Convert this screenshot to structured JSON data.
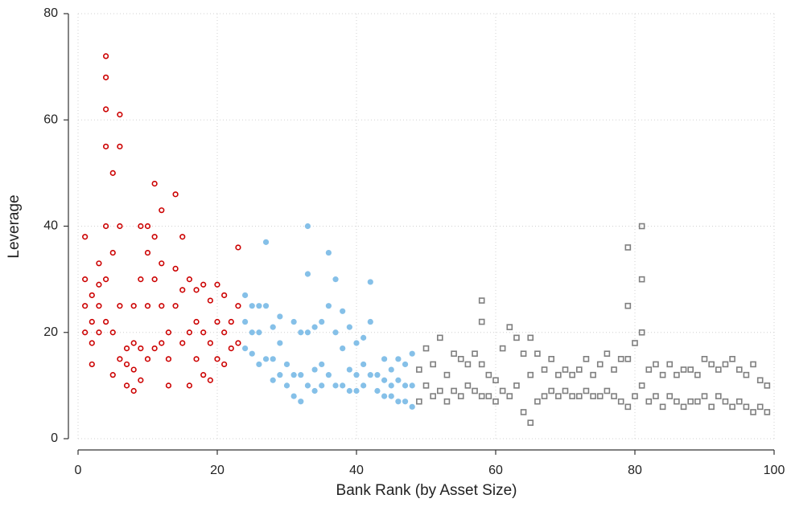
{
  "chart_data": {
    "type": "scatter",
    "x_label": "Bank Rank (by Asset Size)",
    "y_label": "Leverage",
    "xlim": [
      0,
      100
    ],
    "ylim": [
      0,
      80
    ],
    "xticks": [
      0,
      20,
      40,
      60,
      80,
      100
    ],
    "yticks": [
      0,
      20,
      40,
      60,
      80
    ],
    "grid": true,
    "series": [
      {
        "color": "#cc0000",
        "marker": "circle-open",
        "x": [
          1,
          1,
          1,
          1,
          2,
          2,
          2,
          2,
          3,
          3,
          3,
          3,
          4,
          4,
          4,
          4,
          4,
          4,
          4,
          5,
          5,
          5,
          5,
          6,
          6,
          6,
          6,
          6,
          7,
          7,
          7,
          8,
          8,
          8,
          8,
          9,
          9,
          9,
          9,
          10,
          10,
          10,
          10,
          11,
          11,
          11,
          11,
          12,
          12,
          12,
          12,
          13,
          13,
          13,
          14,
          14,
          14,
          15,
          15,
          15,
          16,
          16,
          16,
          17,
          17,
          17,
          18,
          18,
          18,
          19,
          19,
          19,
          20,
          20,
          20,
          21,
          21,
          21,
          22,
          22,
          23,
          23,
          23
        ],
        "values": [
          20,
          25,
          30,
          38,
          14,
          18,
          22,
          27,
          20,
          25,
          29,
          33,
          22,
          30,
          40,
          55,
          62,
          68,
          72,
          12,
          20,
          35,
          50,
          15,
          25,
          40,
          55,
          61,
          10,
          14,
          17,
          9,
          13,
          18,
          25,
          11,
          17,
          30,
          40,
          15,
          25,
          35,
          40,
          17,
          30,
          38,
          48,
          18,
          25,
          33,
          43,
          10,
          15,
          20,
          25,
          32,
          46,
          18,
          28,
          38,
          10,
          20,
          30,
          15,
          22,
          28,
          12,
          20,
          29,
          11,
          18,
          26,
          15,
          22,
          29,
          14,
          20,
          27,
          17,
          22,
          18,
          25,
          36
        ]
      },
      {
        "color": "#85c0e8",
        "marker": "circle",
        "x": [
          24,
          24,
          24,
          25,
          25,
          25,
          26,
          26,
          26,
          27,
          27,
          27,
          28,
          28,
          28,
          29,
          29,
          29,
          30,
          30,
          31,
          31,
          31,
          32,
          32,
          32,
          33,
          33,
          33,
          33,
          34,
          34,
          34,
          35,
          35,
          35,
          36,
          36,
          36,
          37,
          37,
          37,
          38,
          38,
          38,
          39,
          39,
          39,
          40,
          40,
          40,
          41,
          41,
          41,
          42,
          42,
          42,
          43,
          43,
          44,
          44,
          44,
          45,
          45,
          45,
          46,
          46,
          46,
          47,
          47,
          47,
          48,
          48,
          48
        ],
        "values": [
          17,
          22,
          27,
          16,
          20,
          25,
          14,
          20,
          25,
          15,
          25,
          37,
          11,
          15,
          21,
          12,
          18,
          23,
          10,
          14,
          8,
          12,
          22,
          7,
          12,
          20,
          10,
          20,
          31,
          40,
          9,
          13,
          21,
          10,
          14,
          22,
          12,
          25,
          35,
          10,
          20,
          30,
          10,
          17,
          24,
          9,
          13,
          21,
          9,
          12,
          18,
          10,
          14,
          19,
          12,
          22,
          29.5,
          9,
          12,
          8,
          11,
          15,
          8,
          10,
          13,
          7,
          11,
          15,
          7,
          10,
          14,
          6,
          10,
          16
        ]
      },
      {
        "color": "#7f7f7f",
        "marker": "square-open",
        "x": [
          49,
          49,
          50,
          50,
          51,
          51,
          52,
          52,
          53,
          53,
          54,
          54,
          55,
          55,
          56,
          56,
          57,
          57,
          58,
          58,
          58,
          58,
          59,
          59,
          60,
          60,
          61,
          61,
          62,
          62,
          63,
          63,
          64,
          64,
          65,
          65,
          65,
          66,
          66,
          67,
          67,
          68,
          68,
          69,
          69,
          70,
          70,
          71,
          71,
          72,
          72,
          73,
          73,
          74,
          74,
          75,
          75,
          76,
          76,
          77,
          77,
          78,
          78,
          79,
          79,
          79,
          79,
          80,
          80,
          81,
          81,
          81,
          81,
          82,
          82,
          83,
          83,
          84,
          84,
          85,
          85,
          86,
          86,
          87,
          87,
          88,
          88,
          89,
          89,
          90,
          90,
          91,
          91,
          92,
          92,
          93,
          93,
          94,
          94,
          95,
          95,
          96,
          96,
          97,
          97,
          98,
          98,
          99,
          99
        ],
        "values": [
          7,
          13,
          10,
          17,
          8,
          14,
          9,
          19,
          7,
          12,
          9,
          16,
          8,
          15,
          10,
          14,
          9,
          16,
          8,
          14,
          22,
          26,
          8,
          12,
          7,
          11,
          9,
          17,
          8,
          21,
          10,
          19,
          5,
          16,
          3,
          12,
          19,
          7,
          16,
          8,
          13,
          9,
          15,
          8,
          12,
          9,
          13,
          8,
          12,
          8,
          13,
          9,
          15,
          8,
          12,
          8,
          14,
          9,
          16,
          8,
          13,
          7,
          15,
          6,
          15,
          25,
          36,
          8,
          18,
          10,
          20,
          30,
          40,
          7,
          13,
          8,
          14,
          6,
          12,
          8,
          14,
          7,
          12,
          6,
          13,
          7,
          13,
          7,
          12,
          8,
          15,
          6,
          14,
          8,
          13,
          7,
          14,
          6,
          15,
          7,
          13,
          6,
          12,
          5,
          14,
          6,
          11,
          5,
          10
        ]
      }
    ]
  }
}
